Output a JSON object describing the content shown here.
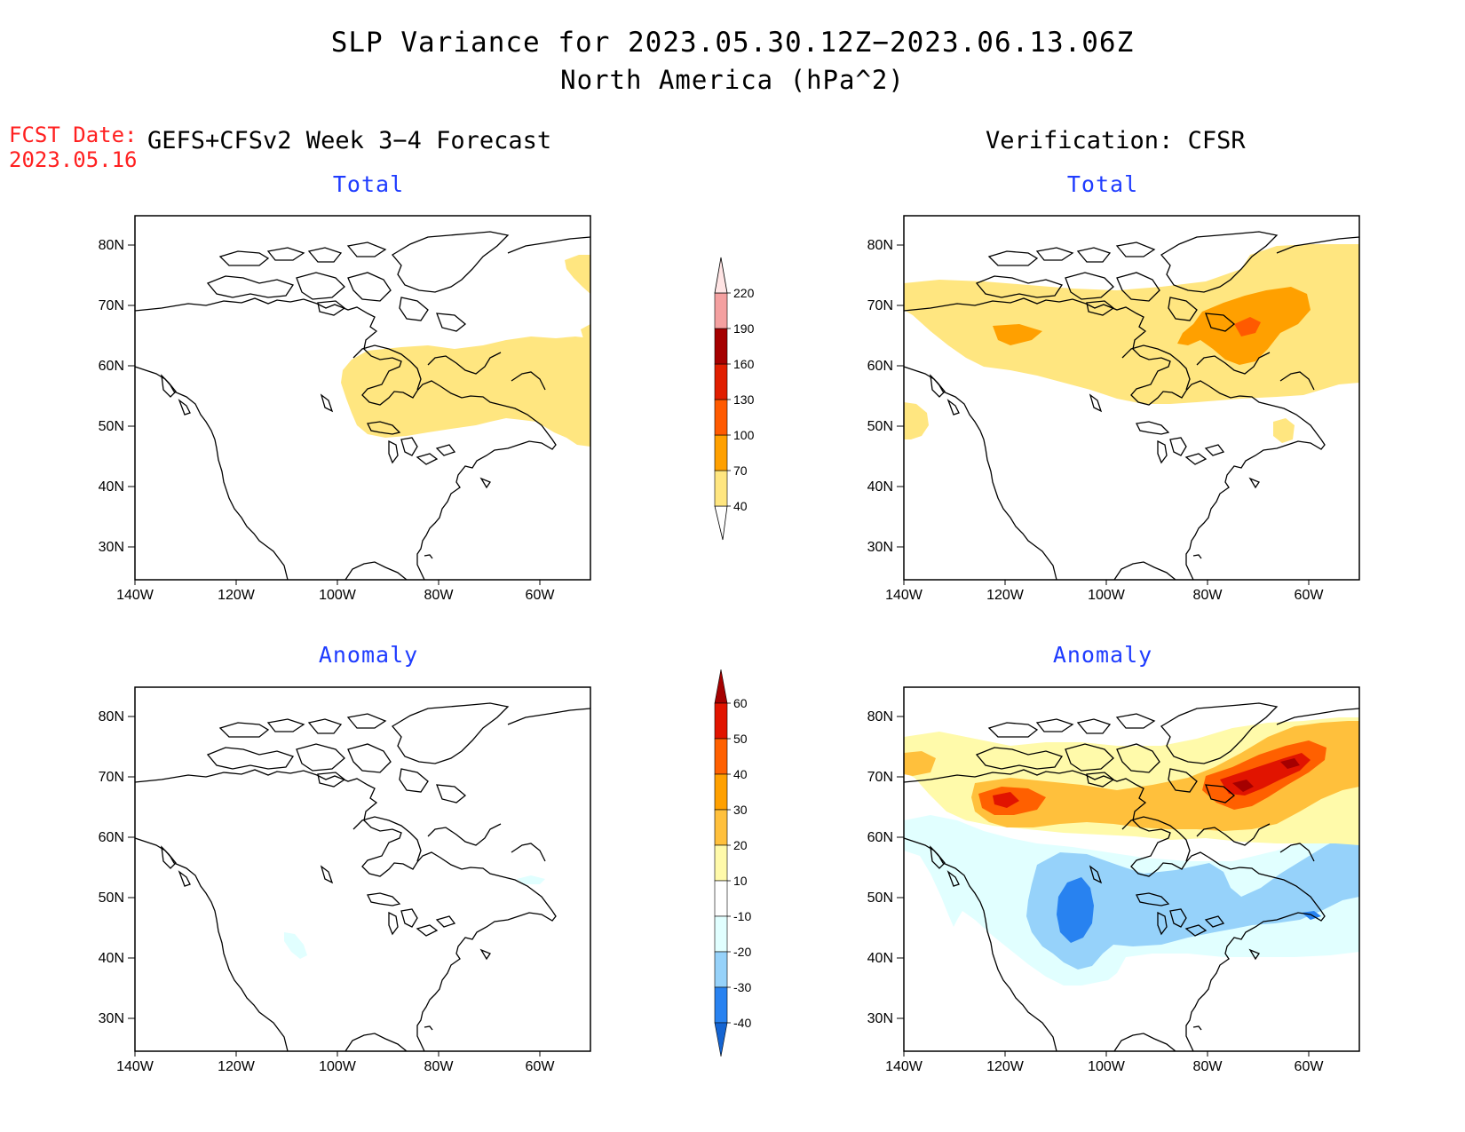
{
  "title": "SLP Variance for 2023.05.30.12Z−2023.06.13.06Z",
  "subtitle": "North America (hPa^2)",
  "fcst_date_label": "FCST Date:",
  "fcst_date_value": "2023.05.16",
  "left_column_title": "GEFS+CFSv2 Week 3−4 Forecast",
  "right_column_title": "Verification: CFSR",
  "panels": {
    "forecast_total": "Total",
    "forecast_anomaly": "Anomaly",
    "verification_total": "Total",
    "verification_anomaly": "Anomaly"
  },
  "axes": {
    "lat_ticks": [
      "80N",
      "70N",
      "60N",
      "50N",
      "40N",
      "30N"
    ],
    "lon_ticks": [
      "140W",
      "120W",
      "100W",
      "80W",
      "60W"
    ]
  },
  "colorbars": {
    "total": {
      "levels": [
        "40",
        "70",
        "100",
        "130",
        "160",
        "190",
        "220"
      ],
      "colors": [
        "#ffe680",
        "#ffa000",
        "#ff5a00",
        "#e01e00",
        "#a50000",
        "#f4a0a0",
        "#ffe4e4"
      ]
    },
    "anomaly": {
      "levels": [
        "-40",
        "-30",
        "-20",
        "-10",
        "10",
        "20",
        "30",
        "40",
        "50",
        "60"
      ],
      "colors": [
        "#1464d2",
        "#2882f0",
        "#96d2fa",
        "#e1ffff",
        "#ffffff",
        "#fffaaa",
        "#ffc03c",
        "#ffa000",
        "#ff6000",
        "#e11400",
        "#a50000"
      ]
    }
  }
}
